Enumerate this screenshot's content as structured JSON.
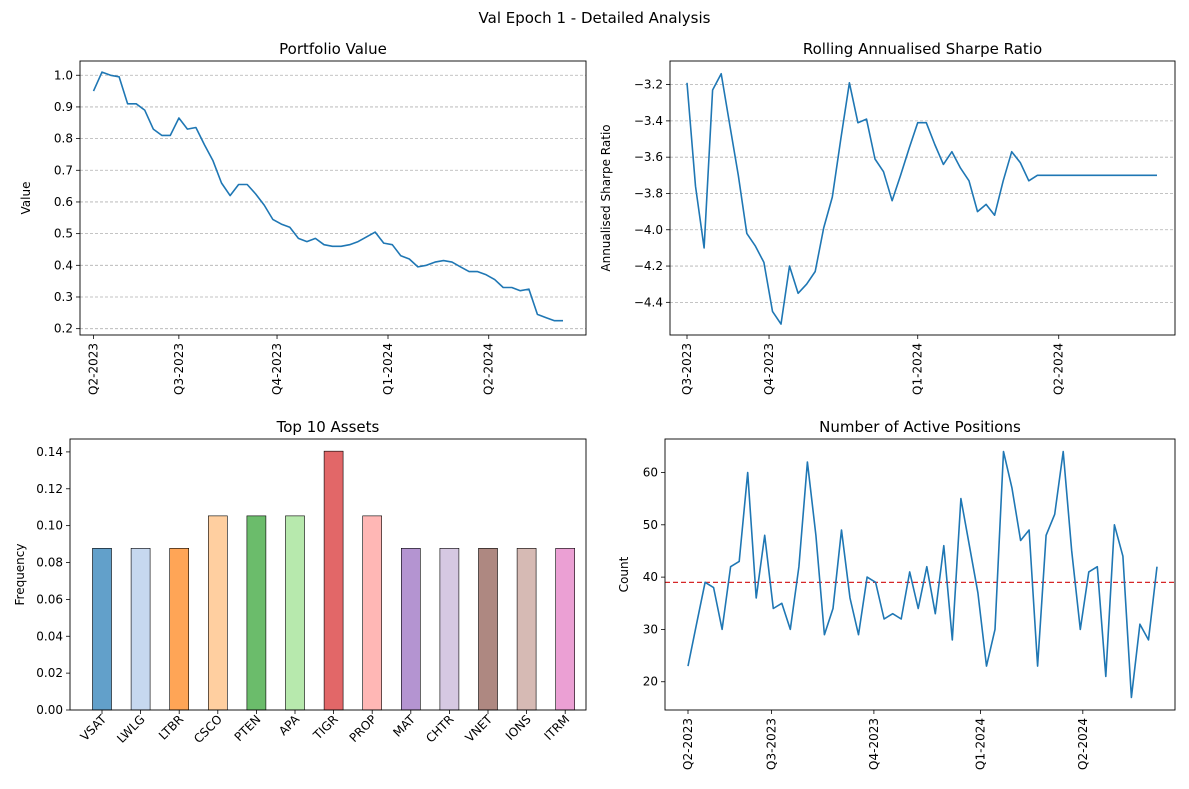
{
  "figure": {
    "suptitle": "Val Epoch 1 - Detailed Analysis"
  },
  "chart_data": [
    {
      "id": "portfolio",
      "type": "line",
      "title": "Portfolio Value",
      "xlabel": "",
      "ylabel": "Value",
      "xlim": [
        0,
        55
      ],
      "ylim": [
        0.18,
        1.045
      ],
      "yticks": [
        0.2,
        0.3,
        0.4,
        0.5,
        0.6,
        0.7,
        0.8,
        0.9,
        1.0
      ],
      "ytick_labels": [
        "0.2",
        "0.3",
        "0.4",
        "0.5",
        "0.6",
        "0.7",
        "0.8",
        "0.9",
        "1.0"
      ],
      "xticks": [
        0,
        10,
        21.5,
        34.5,
        46.3
      ],
      "xtick_labels": [
        "Q2-2023",
        "Q3-2023",
        "Q4-2023",
        "Q1-2024",
        "Q2-2024"
      ],
      "grid": "y",
      "color": "#1f77b4",
      "x": [
        0,
        1,
        2,
        3,
        4,
        5,
        6,
        7,
        8,
        9,
        10,
        11,
        12,
        13,
        14,
        15,
        16,
        17,
        18,
        19,
        20,
        21,
        22,
        23,
        24,
        25,
        26,
        27,
        28,
        29,
        30,
        31,
        32,
        33,
        34,
        35,
        36,
        37,
        38,
        39,
        40,
        41,
        42,
        43,
        44,
        45,
        46,
        47,
        48,
        49,
        50,
        51,
        52,
        53,
        54,
        55
      ],
      "y": [
        0.95,
        1.01,
        1.0,
        0.995,
        0.91,
        0.91,
        0.89,
        0.83,
        0.81,
        0.81,
        0.865,
        0.83,
        0.835,
        0.78,
        0.73,
        0.66,
        0.62,
        0.655,
        0.655,
        0.625,
        0.59,
        0.545,
        0.53,
        0.52,
        0.485,
        0.475,
        0.485,
        0.465,
        0.46,
        0.46,
        0.465,
        0.475,
        0.49,
        0.505,
        0.47,
        0.465,
        0.43,
        0.42,
        0.395,
        0.4,
        0.41,
        0.415,
        0.41,
        0.395,
        0.38,
        0.38,
        0.37,
        0.355,
        0.33,
        0.33,
        0.32,
        0.325,
        0.245,
        0.235,
        0.225,
        0.225
      ]
    },
    {
      "id": "sharpe",
      "type": "line",
      "title": "Rolling Annualised Sharpe Ratio",
      "xlabel": "",
      "ylabel": "Annualised Sharpe Ratio",
      "xlim": [
        0,
        55
      ],
      "ylim": [
        -4.58,
        -3.07
      ],
      "yticks": [
        -4.4,
        -4.2,
        -4.0,
        -3.8,
        -3.6,
        -3.4,
        -3.2
      ],
      "ytick_labels": [
        "−4.4",
        "−4.2",
        "−4.0",
        "−3.8",
        "−3.6",
        "−3.4",
        "−3.2"
      ],
      "xticks": [
        0,
        9.6,
        27,
        43.5
      ],
      "xtick_labels": [
        "Q3-2023",
        "Q4-2023",
        "Q1-2024",
        "Q2-2024"
      ],
      "grid": "y",
      "color": "#1f77b4",
      "x": [
        0,
        1,
        2,
        3,
        4,
        5,
        6,
        7,
        8,
        9,
        10,
        11,
        12,
        13,
        14,
        15,
        16,
        17,
        18,
        19,
        20,
        21,
        22,
        23,
        24,
        25,
        26,
        27,
        28,
        29,
        30,
        31,
        32,
        33,
        34,
        35,
        36,
        37,
        38,
        39,
        40,
        41,
        42,
        43,
        44,
        45,
        46,
        47,
        48,
        49,
        50,
        51,
        52,
        53,
        54,
        55
      ],
      "y": [
        -3.19,
        -3.76,
        -4.1,
        -3.23,
        -3.14,
        -3.42,
        -3.7,
        -4.02,
        -4.09,
        -4.18,
        -4.45,
        -4.52,
        -4.2,
        -4.35,
        -4.3,
        -4.23,
        -3.99,
        -3.82,
        -3.5,
        -3.19,
        -3.41,
        -3.39,
        -3.61,
        -3.68,
        -3.84,
        -3.7,
        -3.55,
        -3.41,
        -3.41,
        -3.53,
        -3.64,
        -3.57,
        -3.66,
        -3.73,
        -3.9,
        -3.86,
        -3.92,
        -3.73,
        -3.57,
        -3.63,
        -3.73,
        -3.7,
        -3.7,
        -3.7,
        -3.7,
        -3.7,
        -3.7,
        -3.7,
        -3.7,
        -3.7,
        -3.7,
        -3.7,
        -3.7,
        -3.7,
        -3.7,
        -3.7
      ]
    },
    {
      "id": "assets",
      "type": "bar",
      "title": "Top 10 Assets",
      "xlabel": "",
      "ylabel": "Frequency",
      "ylim": [
        0,
        0.147
      ],
      "yticks": [
        0.0,
        0.02,
        0.04,
        0.06,
        0.08,
        0.1,
        0.12,
        0.14
      ],
      "ytick_labels": [
        "0.00",
        "0.02",
        "0.04",
        "0.06",
        "0.08",
        "0.10",
        "0.12",
        "0.14"
      ],
      "grid": "none",
      "categories": [
        "VSAT",
        "LWLG",
        "LTBR",
        "CSCO",
        "PTEN",
        "APA",
        "TIGR",
        "PROP",
        "MAT",
        "CHTR",
        "VNET",
        "IONS",
        "ITRM"
      ],
      "values": [
        0.0877,
        0.0877,
        0.0877,
        0.1053,
        0.1053,
        0.1053,
        0.1404,
        0.1053,
        0.0877,
        0.0877,
        0.0877,
        0.0877,
        0.0877
      ],
      "colors": [
        "#1f77b4",
        "#aec7e8",
        "#ff7f0e",
        "#ffbb78",
        "#2ca02c",
        "#98df8a",
        "#d62728",
        "#ff9896",
        "#9467bd",
        "#c5b0d5",
        "#8c564b",
        "#c49c94",
        "#e377c2"
      ]
    },
    {
      "id": "positions",
      "type": "line",
      "title": "Number of Active Positions",
      "xlabel": "",
      "ylabel": "Count",
      "xlim": [
        0,
        55
      ],
      "ylim": [
        14.6,
        66.4
      ],
      "yticks": [
        20,
        30,
        40,
        50,
        60
      ],
      "ytick_labels": [
        "20",
        "30",
        "40",
        "50",
        "60"
      ],
      "xticks": [
        0,
        9.8,
        21.8,
        34.3,
        46.3
      ],
      "xtick_labels": [
        "Q2-2023",
        "Q3-2023",
        "Q4-2023",
        "Q1-2024",
        "Q2-2024"
      ],
      "grid": "none",
      "color": "#1f77b4",
      "reference_line": {
        "value": 39,
        "color": "#d62728",
        "style": "dashed"
      },
      "x": [
        0,
        1,
        2,
        3,
        4,
        5,
        6,
        7,
        8,
        9,
        10,
        11,
        12,
        13,
        14,
        15,
        16,
        17,
        18,
        19,
        20,
        21,
        22,
        23,
        24,
        25,
        26,
        27,
        28,
        29,
        30,
        31,
        32,
        33,
        34,
        35,
        36,
        37,
        38,
        39,
        40,
        41,
        42,
        43,
        44,
        45,
        46,
        47,
        48,
        49,
        50,
        51,
        52,
        53,
        54,
        55
      ],
      "y": [
        23,
        31,
        39,
        38,
        30,
        42,
        43,
        60,
        36,
        48,
        34,
        35,
        30,
        42,
        62,
        48,
        29,
        34,
        49,
        36,
        29,
        40,
        39,
        32,
        33,
        32,
        41,
        34,
        42,
        33,
        46,
        28,
        55,
        46,
        37,
        23,
        30,
        64,
        57,
        47,
        49,
        23,
        48,
        52,
        64,
        45,
        30,
        41,
        42,
        21,
        50,
        44,
        17,
        31,
        28,
        42
      ]
    }
  ]
}
